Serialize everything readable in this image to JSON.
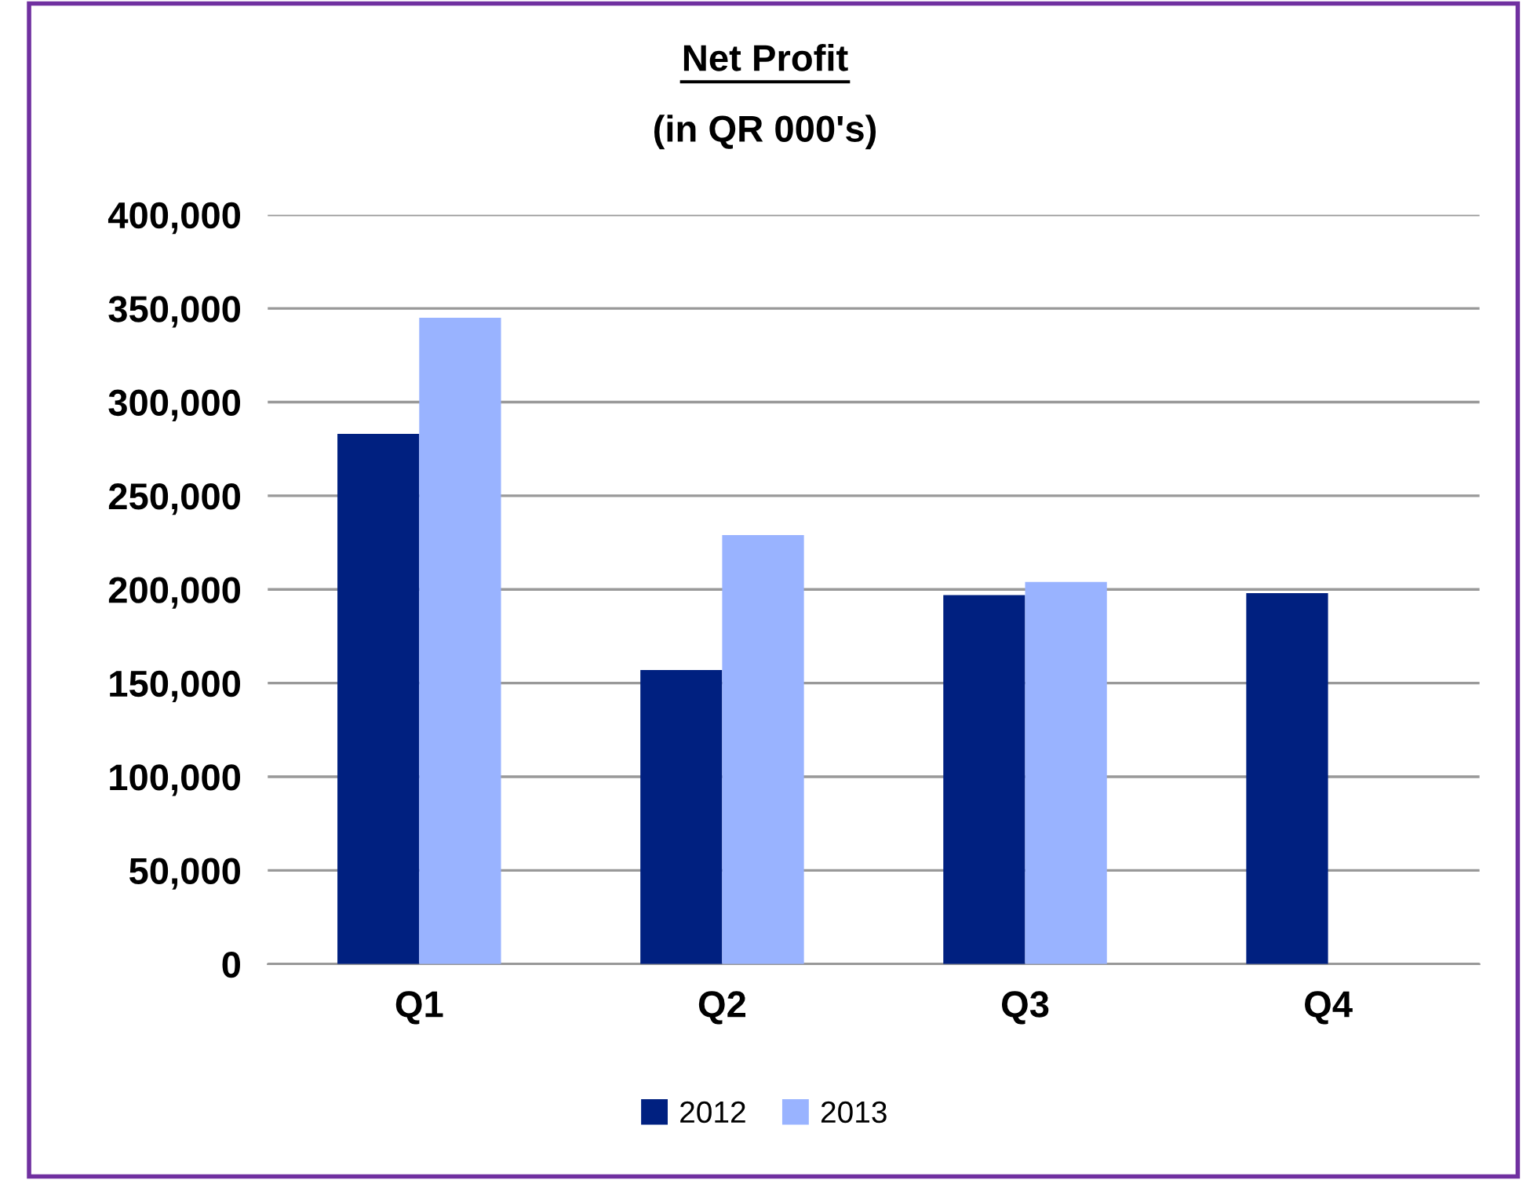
{
  "chart_data": {
    "type": "bar",
    "title": "Net Profit",
    "subtitle": "(in QR 000's)",
    "categories": [
      "Q1",
      "Q2",
      "Q3",
      "Q4"
    ],
    "series": [
      {
        "name": "2012",
        "color": "#002080",
        "values": [
          283000,
          157000,
          197000,
          198000
        ]
      },
      {
        "name": "2013",
        "color": "#99b3ff",
        "values": [
          345000,
          229000,
          204000,
          null
        ]
      }
    ],
    "ylim": [
      0,
      400000
    ],
    "yticks": [
      {
        "value": 0,
        "label": "0"
      },
      {
        "value": 50000,
        "label": "50,000"
      },
      {
        "value": 100000,
        "label": "100,000"
      },
      {
        "value": 150000,
        "label": "150,000"
      },
      {
        "value": 200000,
        "label": "200,000"
      },
      {
        "value": 250000,
        "label": "250,000"
      },
      {
        "value": 300000,
        "label": "300,000"
      },
      {
        "value": 350000,
        "label": "350,000"
      },
      {
        "value": 400000,
        "label": "400,000"
      }
    ],
    "grid": "y",
    "legend": "bottom"
  }
}
